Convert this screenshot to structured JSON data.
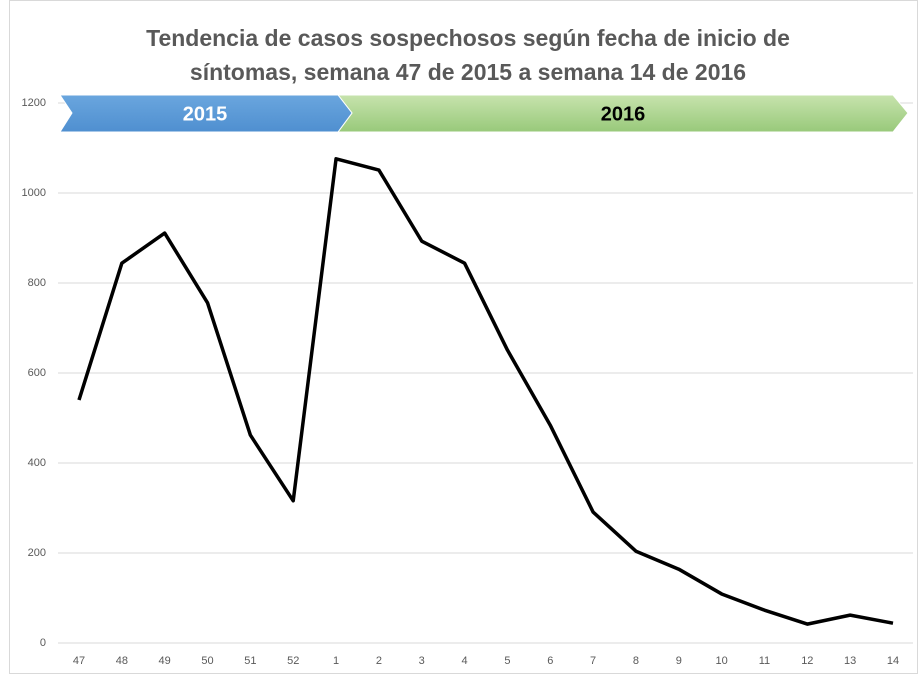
{
  "chart_data": {
    "type": "line",
    "title": [
      "Tendencia de casos sospechosos según fecha de inicio de",
      "síntomas, semana 47 de 2015 a semana 14 de 2016"
    ],
    "annotations": [
      "2015",
      "2016"
    ],
    "categories": [
      "47",
      "48",
      "49",
      "50",
      "51",
      "52",
      "1",
      "2",
      "3",
      "4",
      "5",
      "6",
      "7",
      "8",
      "9",
      "10",
      "11",
      "12",
      "13",
      "14"
    ],
    "series": [
      {
        "color": "#000000",
        "values": [
          540,
          844,
          911,
          756,
          462,
          316,
          1076,
          1051,
          893,
          844,
          651,
          484,
          291,
          204,
          164,
          109,
          73,
          42,
          62,
          44
        ]
      }
    ],
    "ylim": [
      0,
      1200
    ],
    "yticks": [
      0,
      200,
      400,
      600,
      800,
      1000,
      1200
    ],
    "grid": true
  }
}
